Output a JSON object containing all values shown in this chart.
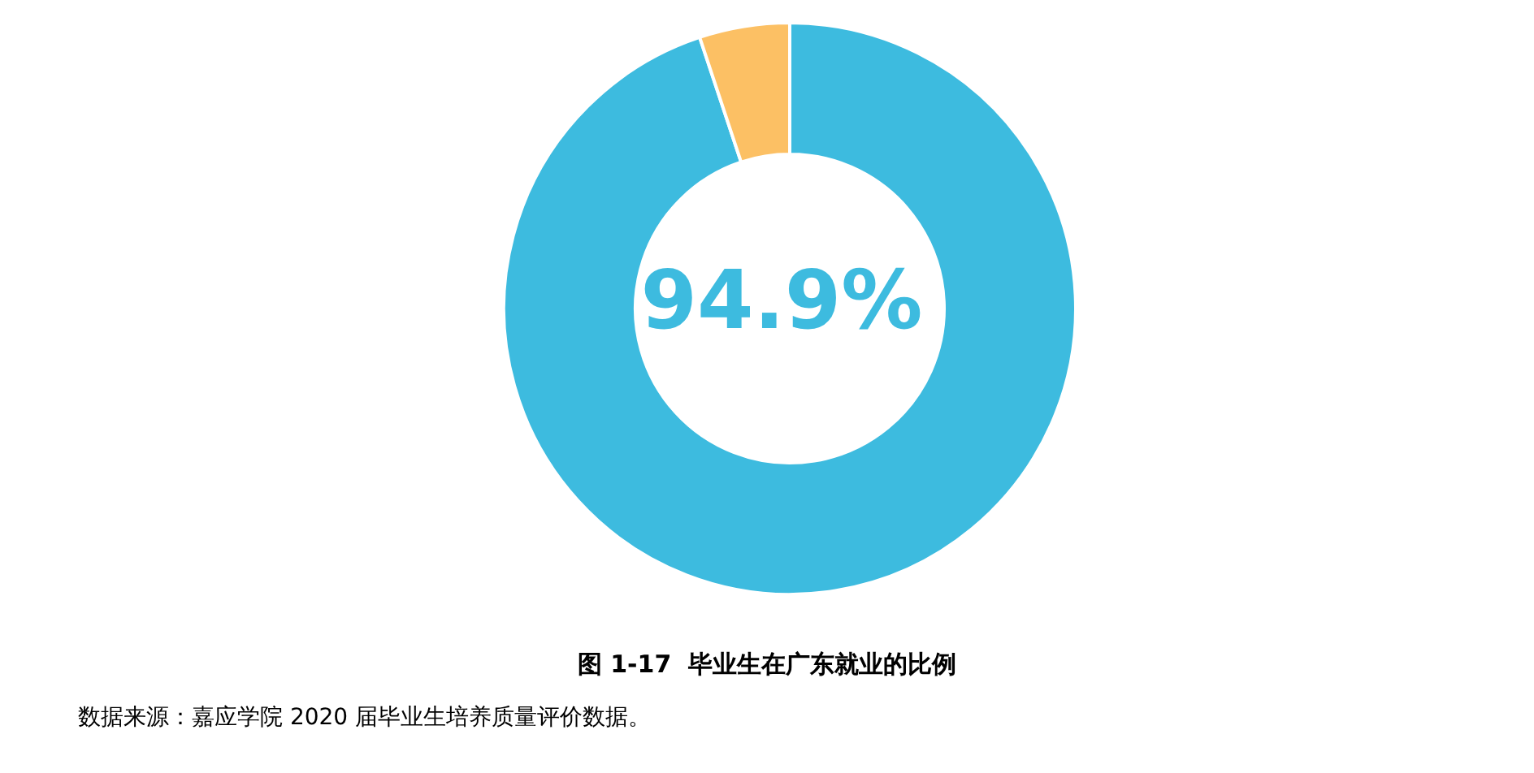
{
  "chart_data": {
    "type": "donut",
    "title": "图 1-17  毕业生在广东就业的比例",
    "categories": [
      null,
      null
    ],
    "values": [
      94.9,
      5.1
    ],
    "colors": [
      "#3dbbdf",
      "#fcc064"
    ],
    "value_labels": [
      "94.9%",
      null
    ],
    "annotations": [
      "数据来源：嘉应学院 2020 届毕业生培养质量评价数据。"
    ]
  }
}
